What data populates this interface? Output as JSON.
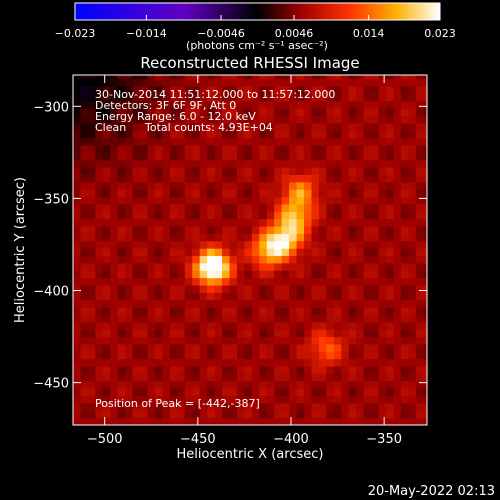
{
  "chart_data": {
    "type": "heatmap",
    "title": "Reconstructed RHESSI Image",
    "xlabel": "Heliocentric X (arcsec)",
    "ylabel": "Heliocentric Y (arcsec)",
    "xlim": [
      -517,
      -327
    ],
    "ylim": [
      -473,
      -283
    ],
    "x_ticks": [
      -500,
      -450,
      -400,
      -350
    ],
    "y_ticks": [
      -300,
      -350,
      -400,
      -450
    ],
    "x_tick_labels": [
      "−500",
      "−450",
      "−400",
      "−350"
    ],
    "y_tick_labels": [
      "−300",
      "−350",
      "−400",
      "−450"
    ],
    "colorbar": {
      "min": -0.023,
      "max": 0.023,
      "ticks": [
        -0.023,
        -0.014,
        -0.0046,
        0.0046,
        0.014,
        0.023
      ],
      "tick_labels": [
        "−0.023",
        "−0.014",
        "−0.0046",
        "0.0046",
        "0.014",
        "0.023"
      ],
      "unit_label": "(photons cm⁻² s⁻¹ asec⁻²)"
    },
    "annotations": {
      "time_range": "30-Nov-2014 11:51:12.000 to 11:57:12.000",
      "detectors": "Detectors: 3F 6F 9F, Att 0",
      "energy_range": "Energy Range: 6.0 - 12.0 keV",
      "clean_label": "Clean",
      "total_counts": "Total counts: 4.93E+04",
      "peak_position": "Position of Peak = [-442,-387]"
    },
    "sources": [
      {
        "x": -442,
        "y": -387,
        "peak": 0.023
      },
      {
        "x": -412,
        "y": -378,
        "peak": 0.013
      },
      {
        "x": -403,
        "y": -372,
        "peak": 0.013
      },
      {
        "x": -398,
        "y": -360,
        "peak": 0.012
      },
      {
        "x": -395,
        "y": -346,
        "peak": 0.01
      },
      {
        "x": -381,
        "y": -431,
        "peak": 0.008
      }
    ],
    "background_level": 0.0055
  },
  "footer": {
    "date_stamp": "20-May-2022 02:13"
  }
}
